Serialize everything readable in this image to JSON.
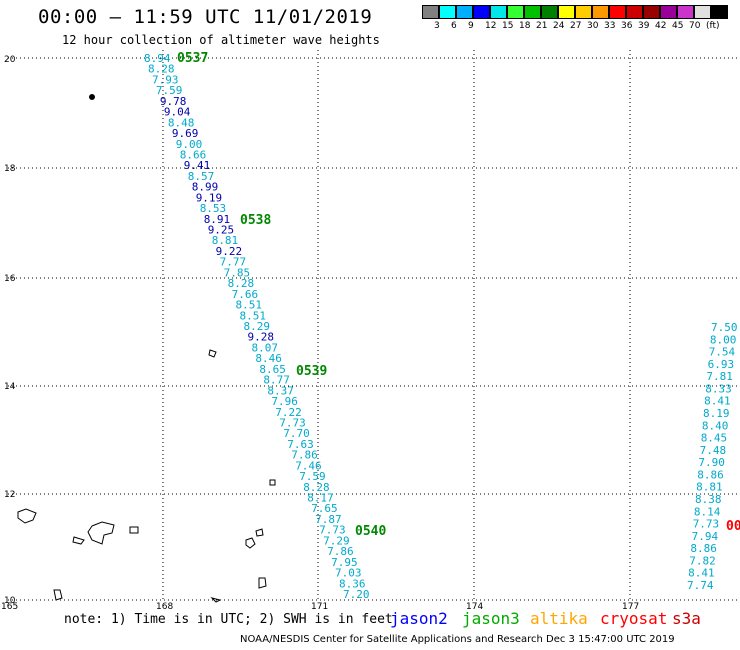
{
  "title": "00:00 – 11:59 UTC 11/01/2019",
  "subtitle": "12 hour collection of altimeter wave heights",
  "legend": {
    "colors": [
      "#808080",
      "#00ffff",
      "#00b0ff",
      "#0000ff",
      "#00e8e8",
      "#33ff33",
      "#00c000",
      "#008000",
      "#ffff00",
      "#ffcc00",
      "#ff9900",
      "#ff0000",
      "#cc0000",
      "#990000",
      "#990099",
      "#cc33cc",
      "#e0e0e0",
      "#000000"
    ],
    "labels": [
      "3",
      "6",
      "9",
      "12",
      "15",
      "18",
      "21",
      "24",
      "27",
      "30",
      "33",
      "36",
      "39",
      "42",
      "45",
      "70",
      "(ft)"
    ]
  },
  "axes": {
    "lat_labels": [
      "20",
      "18",
      "16",
      "14",
      "12",
      "10"
    ],
    "lon_labels": [
      "165",
      "168",
      "171",
      "174",
      "177"
    ]
  },
  "track1": {
    "values": [
      "8.94",
      "8.28",
      "7.93",
      "7.59",
      "9.78",
      "9.04",
      "8.48",
      "9.69",
      "9.00",
      "8.66",
      "9.41",
      "8.57",
      "8.99",
      "9.19",
      "8.53",
      "8.91",
      "9.25",
      "8.81",
      "9.22",
      "7.77",
      "7.85",
      "8.28",
      "7.66",
      "8.51",
      "8.51",
      "8.29",
      "9.28",
      "8.07",
      "8.46",
      "8.65",
      "8.77",
      "8.37",
      "7.96",
      "7.22",
      "7.73",
      "7.70",
      "7.63",
      "7.86",
      "7.46",
      "7.59",
      "8.28",
      "8.17",
      "7.65",
      "7.87",
      "7.73",
      "7.29",
      "7.86",
      "7.95",
      "7.03",
      "8.36",
      "7.20"
    ],
    "colors": [
      "#00aacc",
      "#00aacc",
      "#00aacc",
      "#00aacc",
      "#0000aa",
      "#0000aa",
      "#00aacc",
      "#0000aa",
      "#00aacc",
      "#00aacc",
      "#0000aa",
      "#00aacc",
      "#0000aa",
      "#0000aa",
      "#00aacc",
      "#0000aa",
      "#0000aa",
      "#00aacc",
      "#0000aa",
      "#00aacc",
      "#00aacc",
      "#00aacc",
      "#00aacc",
      "#00aacc",
      "#00aacc",
      "#00aacc",
      "#0000aa",
      "#00aacc",
      "#00aacc",
      "#00aacc",
      "#00aacc",
      "#00aacc",
      "#00aacc",
      "#00aacc",
      "#00aacc",
      "#00aacc",
      "#00aacc",
      "#00aacc",
      "#00aacc",
      "#00aacc",
      "#00aacc",
      "#00aacc",
      "#00aacc",
      "#00aacc",
      "#00aacc",
      "#00aacc",
      "#00aacc",
      "#00aacc",
      "#00aacc",
      "#00aacc",
      "#00aacc"
    ],
    "pass_times": [
      "0537",
      "0538",
      "0539",
      "0540"
    ]
  },
  "track2": {
    "values": [
      "7.50",
      "8.00",
      "7.54",
      "6.93",
      "7.81",
      "8.33",
      "8.41",
      "8.19",
      "8.40",
      "8.45",
      "7.48",
      "7.90",
      "8.86",
      "8.81",
      "8.38",
      "8.14",
      "7.73",
      "7.94",
      "8.86",
      "7.82",
      "8.41",
      "7.74"
    ],
    "pass_time_fragment": "00"
  },
  "note": "note: 1) Time is in UTC; 2) SWH is in feet",
  "satellites": [
    {
      "name": "jason2",
      "color": "#0000ff"
    },
    {
      "name": "jason3",
      "color": "#00aa00"
    },
    {
      "name": "altika",
      "color": "#ffa500"
    },
    {
      "name": "cryosat",
      "color": "#ff0000"
    },
    {
      "name": "s3a",
      "color": "#cc0000"
    }
  ],
  "credit": "NOAA/NESDIS Center for Satellite Applications and Research    Dec  3 15:47:00 UTC 2019"
}
